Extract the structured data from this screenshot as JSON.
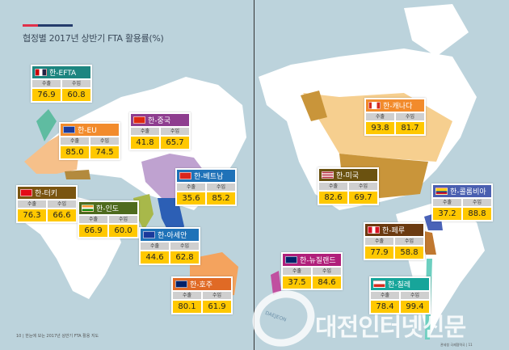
{
  "title": "협정별 2017년 상반기 FTA 활용률(%)",
  "col_labels": {
    "export": "수출",
    "import": "수입"
  },
  "agreements": [
    {
      "name": "한-EFTA",
      "color": "#1d8580",
      "flag": "efta",
      "export": "76.9",
      "import": "60.8"
    },
    {
      "name": "한-EU",
      "color": "#f28b2c",
      "flag": "eu",
      "export": "85.0",
      "import": "74.5"
    },
    {
      "name": "한-중국",
      "color": "#8e3d8f",
      "flag": "china",
      "export": "41.8",
      "import": "65.7"
    },
    {
      "name": "한-베트남",
      "color": "#1f72b8",
      "flag": "vietnam",
      "export": "35.6",
      "import": "85.2"
    },
    {
      "name": "한-터키",
      "color": "#7a5410",
      "flag": "turkey",
      "export": "76.3",
      "import": "66.6"
    },
    {
      "name": "한-인도",
      "color": "#4f6b1e",
      "flag": "india",
      "export": "66.9",
      "import": "60.0"
    },
    {
      "name": "한-아세안",
      "color": "#1f72b8",
      "flag": "asean",
      "export": "44.6",
      "import": "62.8"
    },
    {
      "name": "한-호주",
      "color": "#e06a25",
      "flag": "australia",
      "export": "80.1",
      "import": "61.9"
    },
    {
      "name": "한-캐나다",
      "color": "#f28b2c",
      "flag": "canada",
      "export": "93.8",
      "import": "81.7"
    },
    {
      "name": "한-미국",
      "color": "#6b5210",
      "flag": "usa",
      "export": "82.6",
      "import": "69.7"
    },
    {
      "name": "한-콜롬비아",
      "color": "#4a5fb0",
      "flag": "colombia",
      "export": "37.2",
      "import": "88.8"
    },
    {
      "name": "한-페루",
      "color": "#6b3a10",
      "flag": "peru",
      "export": "77.9",
      "import": "58.8"
    },
    {
      "name": "한-뉴질랜드",
      "color": "#b01f7a",
      "flag": "newzealand",
      "export": "37.5",
      "import": "84.6"
    },
    {
      "name": "한-칠레",
      "color": "#17a59a",
      "flag": "chile",
      "export": "78.4",
      "import": "99.4"
    }
  ],
  "footer": {
    "left": "10 | 한눈에 보는 2017년 상반기 FTA 활용 지도",
    "right": "관세청 국제협력국 | 11"
  },
  "watermark": {
    "text": "대전인터넷신문",
    "ring_text": "DAEJEON"
  }
}
